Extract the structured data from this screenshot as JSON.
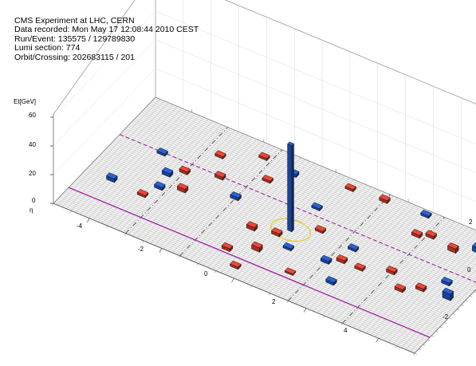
{
  "event_info": {
    "experiment": "CMS Experiment at LHC, CERN",
    "recorded": "Data recorded: Mon May 17 12:08:44 2010 CEST",
    "run_event": "Run/Event: 135575 / 129789830",
    "lumi": "Lumi section: 774",
    "orbit": "Orbit/Crossing: 202683115 / 201"
  },
  "chart_data": {
    "type": "lego",
    "title": "",
    "z_axis": {
      "label": "Et[GeV]",
      "range": [
        0,
        60
      ],
      "ticks": [
        "0",
        "20",
        "40",
        "60"
      ]
    },
    "eta_axis": {
      "label": "η",
      "range": [
        -5,
        5
      ],
      "ticks": [
        "-4",
        "-2",
        "0",
        "2",
        "4"
      ]
    },
    "phi_axis": {
      "label": "",
      "range": [
        -3.14,
        3.14
      ],
      "ticks": [
        "-2",
        "0",
        "2"
      ]
    },
    "colors": {
      "ecal": "#c0392b",
      "hcal": "#1e4fb0",
      "jet_circle": "#e0d020",
      "met_line": "#a020a0",
      "grid": "#9a9a9a"
    },
    "towers": [
      {
        "eta": 0.2,
        "phi": 0.1,
        "et": 60,
        "det": "hcal"
      },
      {
        "eta": -4.3,
        "phi": 1.1,
        "et": 2.5,
        "det": "hcal"
      },
      {
        "eta": -3.4,
        "phi": 1.2,
        "et": 1.5,
        "det": "ecal"
      },
      {
        "eta": -3.2,
        "phi": 0.6,
        "et": 2.0,
        "det": "hcal"
      },
      {
        "eta": -2.7,
        "phi": 0.3,
        "et": 2.5,
        "det": "ecal"
      },
      {
        "eta": -1.5,
        "phi": -0.3,
        "et": 2.0,
        "det": "hcal"
      },
      {
        "eta": -0.6,
        "phi": 0.7,
        "et": 2.5,
        "det": "ecal"
      },
      {
        "eta": 0.0,
        "phi": 0.5,
        "et": 2.0,
        "det": "ecal"
      },
      {
        "eta": 0.5,
        "phi": 0.9,
        "et": 1.5,
        "det": "hcal"
      },
      {
        "eta": 1.5,
        "phi": 0.8,
        "et": 2.0,
        "det": "hcal"
      },
      {
        "eta": 1.8,
        "phi": 0.5,
        "et": 2.0,
        "det": "ecal"
      },
      {
        "eta": 2.3,
        "phi": 0.5,
        "et": 1.5,
        "det": "ecal"
      },
      {
        "eta": 3.5,
        "phi": 0.7,
        "et": 2.0,
        "det": "ecal"
      },
      {
        "eta": -3.3,
        "phi": -0.1,
        "et": 2.5,
        "det": "hcal"
      },
      {
        "eta": -3.0,
        "phi": -0.5,
        "et": 2.0,
        "det": "ecal"
      },
      {
        "eta": -2.2,
        "phi": -0.9,
        "et": 2.0,
        "det": "ecal"
      },
      {
        "eta": -1.2,
        "phi": -1.6,
        "et": 1.5,
        "det": "ecal"
      },
      {
        "eta": 0.3,
        "phi": -1.3,
        "et": 1.5,
        "det": "hcal"
      },
      {
        "eta": 0.8,
        "phi": -0.4,
        "et": 1.5,
        "det": "ecal"
      },
      {
        "eta": 1.8,
        "phi": -0.2,
        "et": 1.5,
        "det": "hcal"
      },
      {
        "eta": 3.0,
        "phi": 0.1,
        "et": 2.0,
        "det": "ecal"
      },
      {
        "eta": 3.9,
        "phi": 0.3,
        "et": 2.0,
        "det": "ecal"
      },
      {
        "eta": 4.6,
        "phi": 0.2,
        "et": 4.5,
        "det": "hcal"
      },
      {
        "eta": 4.3,
        "phi": -0.4,
        "et": 2.0,
        "det": "hcal"
      },
      {
        "eta": -3.8,
        "phi": -0.9,
        "et": 1.5,
        "det": "hcal"
      },
      {
        "eta": -2.6,
        "phi": -1.8,
        "et": 1.5,
        "det": "ecal"
      },
      {
        "eta": -1.7,
        "phi": -2.5,
        "et": 1.5,
        "det": "ecal"
      },
      {
        "eta": -0.8,
        "phi": -2.3,
        "et": 2.0,
        "det": "hcal"
      },
      {
        "eta": 0.6,
        "phi": -2.7,
        "et": 1.5,
        "det": "ecal"
      },
      {
        "eta": 1.5,
        "phi": -2.8,
        "et": 2.0,
        "det": "ecal"
      },
      {
        "eta": 2.8,
        "phi": -1.9,
        "et": 2.0,
        "det": "ecal"
      },
      {
        "eta": 3.1,
        "phi": -2.1,
        "et": 2.0,
        "det": "ecal"
      },
      {
        "eta": 3.8,
        "phi": -1.9,
        "et": 3.0,
        "det": "ecal"
      },
      {
        "eta": 4.3,
        "phi": -2.3,
        "et": 3.5,
        "det": "hcal"
      },
      {
        "eta": 2.6,
        "phi": -2.9,
        "et": 1.5,
        "det": "hcal"
      },
      {
        "eta": 4.6,
        "phi": -2.8,
        "et": 2.5,
        "det": "hcal"
      },
      {
        "eta": -0.7,
        "phi": 2.0,
        "et": 2.0,
        "det": "ecal"
      },
      {
        "eta": -0.2,
        "phi": 2.6,
        "et": 1.5,
        "det": "ecal"
      },
      {
        "eta": -0.1,
        "phi": 1.5,
        "et": 3.0,
        "det": "ecal"
      },
      {
        "eta": 1.0,
        "phi": 1.9,
        "et": 1.0,
        "det": "ecal"
      },
      {
        "eta": 2.0,
        "phi": 1.6,
        "et": 2.0,
        "det": "hcal"
      }
    ]
  }
}
